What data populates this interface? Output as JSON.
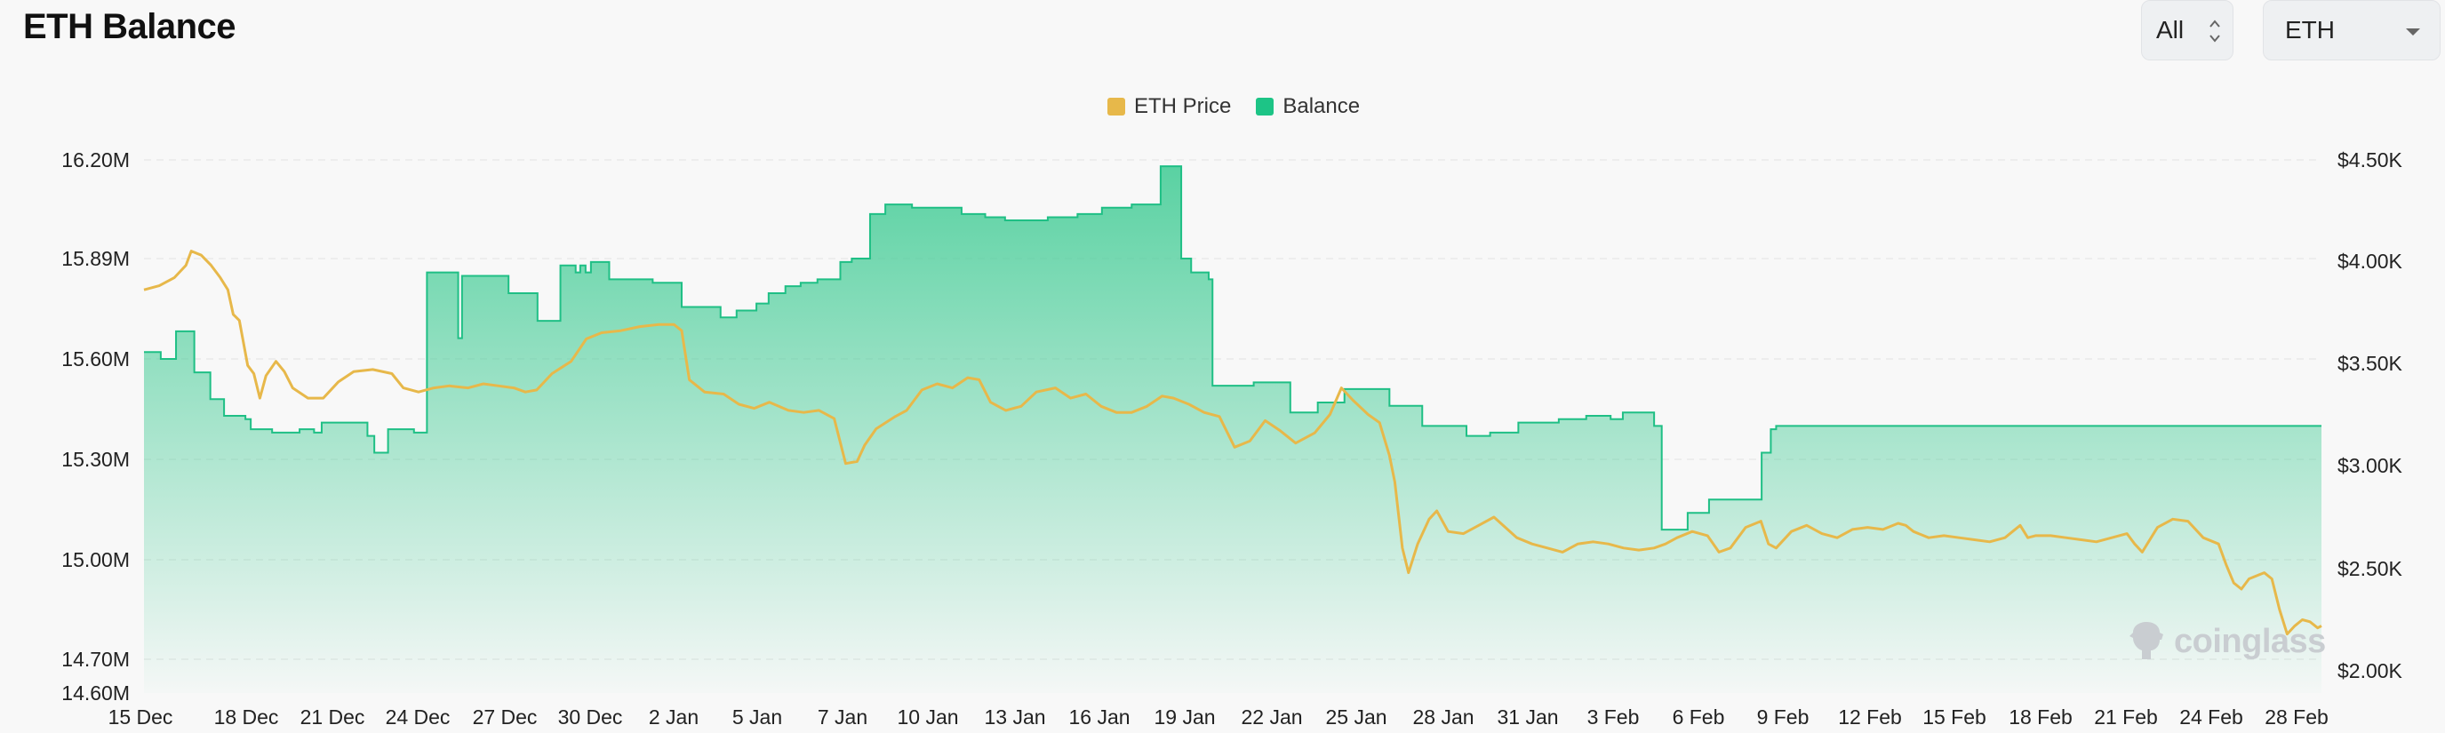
{
  "header": {
    "title": "ETH Balance"
  },
  "controls": {
    "range_label": "All",
    "asset_label": "ETH"
  },
  "watermark": {
    "text": "coinglass"
  },
  "chart_data": {
    "type": "area",
    "legend": [
      {
        "name": "ETH Price",
        "color": "#e7b84a"
      },
      {
        "name": "Balance",
        "color": "#1dc486"
      }
    ],
    "legend_position": "top-center",
    "categories": [
      "15 Dec",
      "18 Dec",
      "21 Dec",
      "24 Dec",
      "27 Dec",
      "30 Dec",
      "2 Jan",
      "5 Jan",
      "7 Jan",
      "10 Jan",
      "13 Jan",
      "16 Jan",
      "19 Jan",
      "22 Jan",
      "25 Jan",
      "28 Jan",
      "31 Jan",
      "3 Feb",
      "6 Feb",
      "9 Feb",
      "12 Feb",
      "15 Feb",
      "18 Feb",
      "21 Feb",
      "24 Feb",
      "28 Feb"
    ],
    "y_left": {
      "label": "",
      "ticks": [
        "16.20M",
        "15.89M",
        "15.60M",
        "15.30M",
        "15.00M",
        "14.70M",
        "14.60M"
      ],
      "tick_values": [
        16.2,
        15.89,
        15.6,
        15.3,
        15.0,
        14.7,
        14.6
      ],
      "range": [
        14.6,
        16.2
      ]
    },
    "y_right": {
      "label": "",
      "ticks": [
        "$4.50K",
        "$4.00K",
        "$3.50K",
        "$3.00K",
        "$2.50K",
        "$2.00K"
      ],
      "tick_values": [
        4.5,
        4.0,
        3.5,
        3.0,
        2.5,
        2.0
      ],
      "range": [
        1.95,
        4.5
      ]
    },
    "grid": true,
    "series": [
      {
        "name": "Balance",
        "axis": "left",
        "unit": "M ETH",
        "style": "step-area",
        "values": [
          [
            0,
            15.62
          ],
          [
            2.2,
            15.6
          ],
          [
            4.2,
            15.68
          ],
          [
            6.6,
            15.56
          ],
          [
            8.7,
            15.48
          ],
          [
            10.5,
            15.43
          ],
          [
            13.3,
            15.42
          ],
          [
            14.0,
            15.39
          ],
          [
            16.8,
            15.38
          ],
          [
            20.4,
            15.39
          ],
          [
            22.3,
            15.38
          ],
          [
            23.3,
            15.41
          ],
          [
            29.3,
            15.37
          ],
          [
            30.2,
            15.32
          ],
          [
            32.0,
            15.39
          ],
          [
            35.4,
            15.38
          ],
          [
            37.1,
            15.85
          ],
          [
            41.2,
            15.66
          ],
          [
            41.7,
            15.84
          ],
          [
            47.8,
            15.79
          ],
          [
            51.6,
            15.71
          ],
          [
            54.6,
            15.87
          ],
          [
            56.6,
            15.85
          ],
          [
            57.2,
            15.87
          ],
          [
            57.9,
            15.85
          ],
          [
            58.6,
            15.88
          ],
          [
            61.0,
            15.83
          ],
          [
            66.7,
            15.82
          ],
          [
            70.5,
            15.75
          ],
          [
            75.6,
            15.72
          ],
          [
            77.7,
            15.74
          ],
          [
            80.3,
            15.76
          ],
          [
            81.9,
            15.79
          ],
          [
            84.1,
            15.81
          ],
          [
            86.1,
            15.82
          ],
          [
            88.3,
            15.83
          ],
          [
            91.3,
            15.88
          ],
          [
            92.8,
            15.89
          ],
          [
            95.2,
            16.03
          ],
          [
            97.2,
            16.06
          ],
          [
            100.7,
            16.05
          ],
          [
            105.9,
            16.05
          ],
          [
            107.2,
            16.03
          ],
          [
            110.3,
            16.02
          ],
          [
            112.9,
            16.01
          ],
          [
            118.5,
            16.02
          ],
          [
            122.4,
            16.03
          ],
          [
            125.6,
            16.05
          ],
          [
            129.5,
            16.06
          ],
          [
            133.3,
            16.18
          ],
          [
            136.0,
            15.89
          ],
          [
            137.3,
            15.85
          ],
          [
            139.6,
            15.83
          ],
          [
            140.1,
            15.52
          ],
          [
            145.5,
            15.53
          ],
          [
            150.3,
            15.44
          ],
          [
            153.9,
            15.47
          ],
          [
            157.4,
            15.51
          ],
          [
            163.3,
            15.46
          ],
          [
            167.6,
            15.4
          ],
          [
            173.4,
            15.37
          ],
          [
            176.5,
            15.38
          ],
          [
            180.2,
            15.41
          ],
          [
            185.5,
            15.42
          ],
          [
            189.1,
            15.43
          ],
          [
            192.3,
            15.42
          ],
          [
            193.9,
            15.44
          ],
          [
            198.0,
            15.4
          ],
          [
            199.0,
            15.09
          ],
          [
            202.4,
            15.14
          ],
          [
            205.2,
            15.18
          ],
          [
            208.2,
            15.18
          ],
          [
            212.1,
            15.32
          ],
          [
            213.3,
            15.39
          ],
          [
            214.0,
            15.4
          ]
        ]
      },
      {
        "name": "ETH Price",
        "axis": "right",
        "unit": "K USD",
        "style": "line",
        "values": [
          [
            0,
            3.86
          ],
          [
            2,
            3.88
          ],
          [
            4,
            3.92
          ],
          [
            5.5,
            3.98
          ],
          [
            6.2,
            4.05
          ],
          [
            7.5,
            4.03
          ],
          [
            8.8,
            3.98
          ],
          [
            10,
            3.92
          ],
          [
            11,
            3.86
          ],
          [
            11.7,
            3.74
          ],
          [
            12.5,
            3.71
          ],
          [
            13.6,
            3.49
          ],
          [
            14.4,
            3.45
          ],
          [
            15.2,
            3.33
          ],
          [
            16,
            3.44
          ],
          [
            17.3,
            3.51
          ],
          [
            18.4,
            3.46
          ],
          [
            19.5,
            3.38
          ],
          [
            21.5,
            3.33
          ],
          [
            23.5,
            3.33
          ],
          [
            25.5,
            3.41
          ],
          [
            27.5,
            3.46
          ],
          [
            30,
            3.47
          ],
          [
            32.5,
            3.45
          ],
          [
            34,
            3.38
          ],
          [
            36,
            3.36
          ],
          [
            38,
            3.38
          ],
          [
            40,
            3.39
          ],
          [
            42.5,
            3.38
          ],
          [
            44.5,
            3.4
          ],
          [
            46.5,
            3.39
          ],
          [
            48.5,
            3.38
          ],
          [
            50,
            3.36
          ],
          [
            51.5,
            3.37
          ],
          [
            53.5,
            3.45
          ],
          [
            56,
            3.51
          ],
          [
            58,
            3.62
          ],
          [
            60,
            3.65
          ],
          [
            62.5,
            3.66
          ],
          [
            65,
            3.68
          ],
          [
            67.5,
            3.69
          ],
          [
            69.5,
            3.69
          ],
          [
            70.5,
            3.66
          ],
          [
            71.5,
            3.42
          ],
          [
            73.5,
            3.36
          ],
          [
            76,
            3.35
          ],
          [
            78,
            3.3
          ],
          [
            80,
            3.28
          ],
          [
            82,
            3.31
          ],
          [
            84.5,
            3.27
          ],
          [
            86.5,
            3.26
          ],
          [
            88.5,
            3.27
          ],
          [
            90.5,
            3.23
          ],
          [
            92,
            3.01
          ],
          [
            93.5,
            3.02
          ],
          [
            94.5,
            3.1
          ],
          [
            96,
            3.18
          ],
          [
            98.5,
            3.24
          ],
          [
            100,
            3.27
          ],
          [
            102,
            3.37
          ],
          [
            104,
            3.4
          ],
          [
            106,
            3.38
          ],
          [
            108,
            3.43
          ],
          [
            109.5,
            3.42
          ],
          [
            111,
            3.31
          ],
          [
            113,
            3.27
          ],
          [
            115,
            3.29
          ],
          [
            117,
            3.36
          ],
          [
            119.5,
            3.38
          ],
          [
            121.5,
            3.33
          ],
          [
            123.5,
            3.35
          ],
          [
            125.5,
            3.29
          ],
          [
            127.5,
            3.26
          ],
          [
            129.5,
            3.26
          ],
          [
            131.5,
            3.29
          ],
          [
            133.5,
            3.34
          ],
          [
            135,
            3.33
          ],
          [
            137,
            3.3
          ],
          [
            139,
            3.26
          ],
          [
            141,
            3.24
          ],
          [
            143,
            3.09
          ],
          [
            145,
            3.12
          ],
          [
            147,
            3.22
          ],
          [
            149,
            3.17
          ],
          [
            151,
            3.11
          ],
          [
            153.5,
            3.16
          ],
          [
            155.5,
            3.25
          ],
          [
            157,
            3.38
          ],
          [
            158.5,
            3.32
          ],
          [
            160.5,
            3.25
          ],
          [
            162,
            3.21
          ],
          [
            163.3,
            3.05
          ],
          [
            164,
            2.92
          ],
          [
            165,
            2.6
          ],
          [
            165.8,
            2.48
          ],
          [
            167,
            2.62
          ],
          [
            168.5,
            2.74
          ],
          [
            169.5,
            2.78
          ],
          [
            171,
            2.68
          ],
          [
            173,
            2.67
          ],
          [
            175,
            2.71
          ],
          [
            177,
            2.75
          ],
          [
            178.5,
            2.7
          ],
          [
            180,
            2.65
          ],
          [
            182,
            2.62
          ],
          [
            184,
            2.6
          ],
          [
            186,
            2.58
          ],
          [
            188,
            2.62
          ],
          [
            190,
            2.63
          ],
          [
            192,
            2.62
          ],
          [
            194,
            2.6
          ],
          [
            196,
            2.59
          ],
          [
            198,
            2.6
          ],
          [
            199.5,
            2.62
          ],
          [
            201,
            2.65
          ],
          [
            203,
            2.68
          ],
          [
            205,
            2.66
          ],
          [
            206.5,
            2.58
          ],
          [
            208,
            2.6
          ],
          [
            210,
            2.7
          ],
          [
            212,
            2.73
          ],
          [
            213,
            2.62
          ],
          [
            214,
            2.6
          ],
          [
            216,
            2.68
          ],
          [
            218,
            2.71
          ],
          [
            220,
            2.67
          ],
          [
            222,
            2.65
          ],
          [
            224,
            2.69
          ],
          [
            226,
            2.7
          ],
          [
            228,
            2.69
          ],
          [
            230,
            2.72
          ],
          [
            231,
            2.71
          ],
          [
            232,
            2.68
          ],
          [
            234,
            2.65
          ],
          [
            236,
            2.66
          ],
          [
            238,
            2.65
          ],
          [
            240,
            2.64
          ],
          [
            242,
            2.63
          ],
          [
            244,
            2.65
          ],
          [
            245,
            2.68
          ],
          [
            246,
            2.71
          ],
          [
            247,
            2.65
          ],
          [
            248,
            2.66
          ],
          [
            250,
            2.66
          ],
          [
            252,
            2.65
          ],
          [
            254,
            2.64
          ],
          [
            256,
            2.63
          ],
          [
            258,
            2.65
          ],
          [
            260,
            2.67
          ],
          [
            261,
            2.62
          ],
          [
            262,
            2.58
          ],
          [
            264,
            2.7
          ],
          [
            266,
            2.74
          ],
          [
            268,
            2.73
          ],
          [
            270,
            2.65
          ],
          [
            272,
            2.62
          ],
          [
            273,
            2.52
          ],
          [
            274,
            2.43
          ],
          [
            275,
            2.4
          ],
          [
            276,
            2.45
          ],
          [
            278,
            2.48
          ],
          [
            279,
            2.45
          ],
          [
            280,
            2.3
          ],
          [
            281,
            2.18
          ],
          [
            282,
            2.22
          ],
          [
            283,
            2.25
          ],
          [
            284,
            2.24
          ],
          [
            285,
            2.21
          ],
          [
            285.5,
            2.22
          ]
        ],
        "x_units": "days since 15 Dec (0-based index; tick 28 Feb at index 75)"
      }
    ]
  }
}
